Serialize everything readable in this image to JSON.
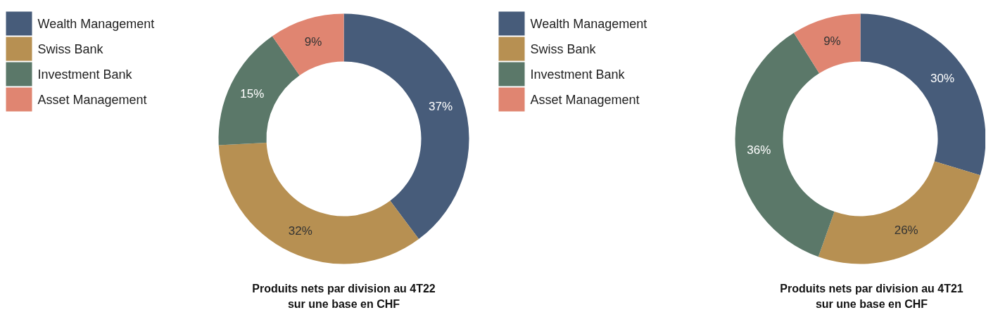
{
  "chart_data": [
    {
      "type": "donut",
      "title": "Produits nets par division au 4T22",
      "subtitle": "sur une base en CHF",
      "categories": [
        "Wealth Management",
        "Swiss Bank",
        "Investment Bank",
        "Asset Management"
      ],
      "values": [
        37,
        32,
        15,
        9
      ],
      "colors": [
        "#475c7a",
        "#b79052",
        "#5b7869",
        "#e08571"
      ],
      "value_labels": [
        "37%",
        "32%",
        "15%",
        "9%"
      ],
      "legend": "top left"
    },
    {
      "type": "donut",
      "title": "Produits nets par division au 4T21",
      "subtitle": "sur une base en CHF",
      "categories": [
        "Wealth Management",
        "Swiss Bank",
        "Investment Bank",
        "Asset Management"
      ],
      "values": [
        30,
        26,
        36,
        9
      ],
      "colors": [
        "#475c7a",
        "#b79052",
        "#5b7869",
        "#e08571"
      ],
      "value_labels": [
        "30%",
        "26%",
        "36%",
        "9%"
      ],
      "legend": "top left"
    }
  ]
}
